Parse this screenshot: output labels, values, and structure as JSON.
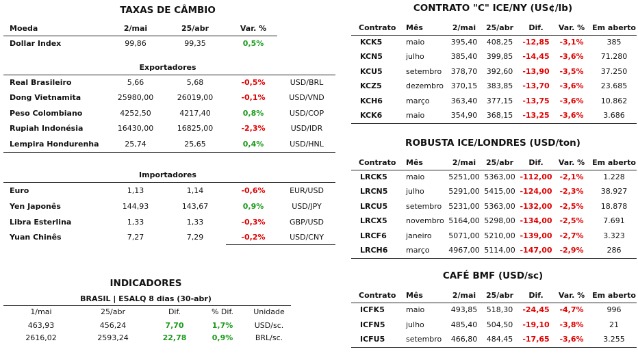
{
  "taxas": {
    "title": "TAXAS DE CÂMBIO",
    "columns": [
      "Moeda",
      "2/mai",
      "25/abr",
      "Var. %"
    ],
    "main_rows": [
      [
        "Dollar Index",
        "99,86",
        "99,35",
        "0,5%"
      ]
    ],
    "exportadores": {
      "title": "Exportadores",
      "rows": [
        [
          "Real Brasileiro",
          "5,66",
          "5,68",
          "-0,5%",
          "USD/BRL"
        ],
        [
          "Dong Vietnamita",
          "25980,00",
          "26019,00",
          "-0,1%",
          "USD/VND"
        ],
        [
          "Peso Colombiano",
          "4252,50",
          "4217,40",
          "0,8%",
          "USD/COP"
        ],
        [
          "Rupiah Indonésia",
          "16430,00",
          "16825,00",
          "-2,3%",
          "USD/IDR"
        ],
        [
          "Lempira Hondurenha",
          "25,74",
          "25,65",
          "0,4%",
          "USD/HNL"
        ]
      ]
    },
    "importadores": {
      "title": "Importadores",
      "rows": [
        [
          "Euro",
          "1,13",
          "1,14",
          "-0,6%",
          "EUR/USD"
        ],
        [
          "Yen Japonês",
          "144,93",
          "143,67",
          "0,9%",
          "USD/JPY"
        ],
        [
          "Libra Esterlina",
          "1,33",
          "1,33",
          "-0,3%",
          "GBP/USD"
        ],
        [
          "Yuan Chinês",
          "7,27",
          "7,29",
          "-0,2%",
          "USD/CNY"
        ]
      ]
    }
  },
  "indicadores": {
    "title": "INDICADORES",
    "subtitle": "BRASIL | ESALQ 8 dias (30-abr)",
    "columns": [
      "1/mai",
      "25/abr",
      "Dif.",
      "% Dif.",
      "Unidade"
    ],
    "rows": [
      [
        "463,93",
        "456,24",
        "7,70",
        "1,7%",
        "USD/sc."
      ],
      [
        "2616,02",
        "2593,24",
        "22,78",
        "0,9%",
        "BRL/sc."
      ]
    ]
  },
  "contrato_c": {
    "title": "CONTRATO \"C\" ICE/NY (US¢/lb)",
    "columns": [
      "Contrato",
      "Mês",
      "2/mai",
      "25/abr",
      "Dif.",
      "Var. %",
      "Em aberto"
    ],
    "rows": [
      [
        "KCK5",
        "maio",
        "395,40",
        "408,25",
        "-12,85",
        "-3,1%",
        "385"
      ],
      [
        "KCN5",
        "julho",
        "385,40",
        "399,85",
        "-14,45",
        "-3,6%",
        "71.280"
      ],
      [
        "KCU5",
        "setembro",
        "378,70",
        "392,60",
        "-13,90",
        "-3,5%",
        "37.250"
      ],
      [
        "KCZ5",
        "dezembro",
        "370,15",
        "383,85",
        "-13,70",
        "-3,6%",
        "23.685"
      ],
      [
        "KCH6",
        "março",
        "363,40",
        "377,15",
        "-13,75",
        "-3,6%",
        "10.862"
      ],
      [
        "KCK6",
        "maio",
        "354,90",
        "368,15",
        "-13,25",
        "-3,6%",
        "3.686"
      ]
    ]
  },
  "robusta": {
    "title": "ROBUSTA ICE/LONDRES (USD/ton)",
    "columns": [
      "Contrato",
      "Mês",
      "2/mai",
      "25/abr",
      "Dif.",
      "Var. %",
      "Em aberto"
    ],
    "rows": [
      [
        "LRCK5",
        "maio",
        "5251,00",
        "5363,00",
        "-112,00",
        "-2,1%",
        "1.228"
      ],
      [
        "LRCN5",
        "julho",
        "5291,00",
        "5415,00",
        "-124,00",
        "-2,3%",
        "38.927"
      ],
      [
        "LRCU5",
        "setembro",
        "5231,00",
        "5363,00",
        "-132,00",
        "-2,5%",
        "18.878"
      ],
      [
        "LRCX5",
        "novembro",
        "5164,00",
        "5298,00",
        "-134,00",
        "-2,5%",
        "7.691"
      ],
      [
        "LRCF6",
        "janeiro",
        "5071,00",
        "5210,00",
        "-139,00",
        "-2,7%",
        "3.323"
      ],
      [
        "LRCH6",
        "março",
        "4967,00",
        "5114,00",
        "-147,00",
        "-2,9%",
        "286"
      ]
    ]
  },
  "cafe_bmf": {
    "title": "CAFÉ BMF (USD/sc)",
    "columns": [
      "Contrato",
      "Mês",
      "2/mai",
      "25/abr",
      "Dif.",
      "Var. %",
      "Em aberto"
    ],
    "rows": [
      [
        "ICFK5",
        "maio",
        "493,85",
        "518,30",
        "-24,45",
        "-4,7%",
        "996"
      ],
      [
        "ICFN5",
        "julho",
        "485,40",
        "504,50",
        "-19,10",
        "-3,8%",
        "21"
      ],
      [
        "ICFU5",
        "setembro",
        "466,80",
        "484,45",
        "-17,65",
        "-3,6%",
        "3.255"
      ]
    ]
  }
}
